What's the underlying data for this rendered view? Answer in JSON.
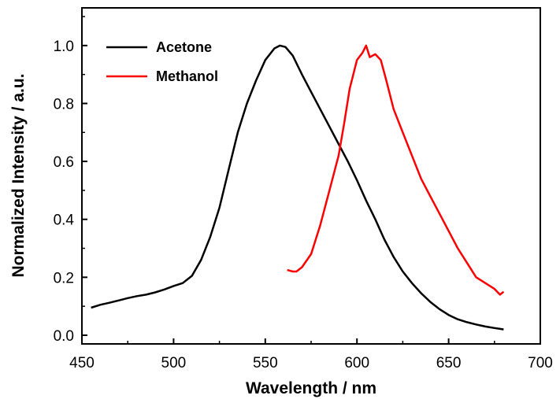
{
  "chart_data": {
    "type": "line",
    "xlabel": "Wavelength / nm",
    "ylabel": "Normalized Intensity / a.u.",
    "xlim": [
      450,
      700
    ],
    "ylim": [
      -0.03,
      1.13
    ],
    "xticks": [
      450,
      500,
      550,
      600,
      650,
      700
    ],
    "yticks": [
      0.0,
      0.2,
      0.4,
      0.6,
      0.8,
      1.0
    ],
    "xtick_labels": [
      "450",
      "500",
      "550",
      "600",
      "650",
      "700"
    ],
    "ytick_labels": [
      "0.0",
      "0.2",
      "0.4",
      "0.6",
      "0.8",
      "1.0"
    ],
    "grid": false,
    "legend_position": "top-left",
    "series": [
      {
        "name": "Acetone",
        "color": "#000000",
        "x": [
          455,
          460,
          465,
          470,
          475,
          480,
          485,
          490,
          495,
          500,
          505,
          510,
          515,
          520,
          525,
          530,
          535,
          540,
          545,
          550,
          555,
          558,
          561,
          565,
          570,
          575,
          580,
          585,
          590,
          595,
          600,
          605,
          610,
          615,
          620,
          625,
          630,
          635,
          640,
          645,
          650,
          655,
          660,
          665,
          670,
          675,
          680
        ],
        "y": [
          0.095,
          0.105,
          0.112,
          0.12,
          0.128,
          0.135,
          0.14,
          0.148,
          0.158,
          0.17,
          0.18,
          0.205,
          0.26,
          0.34,
          0.44,
          0.57,
          0.7,
          0.8,
          0.88,
          0.95,
          0.99,
          1.0,
          0.995,
          0.965,
          0.9,
          0.84,
          0.78,
          0.72,
          0.66,
          0.6,
          0.535,
          0.465,
          0.4,
          0.33,
          0.27,
          0.22,
          0.18,
          0.145,
          0.115,
          0.09,
          0.07,
          0.055,
          0.045,
          0.037,
          0.03,
          0.025,
          0.02
        ]
      },
      {
        "name": "Methanol",
        "color": "#ff0000",
        "x": [
          562,
          565,
          567,
          570,
          575,
          580,
          585,
          590,
          593,
          596,
          600,
          603,
          605,
          607,
          610,
          613,
          616,
          620,
          625,
          630,
          635,
          640,
          645,
          650,
          655,
          660,
          665,
          670,
          675,
          678,
          680
        ],
        "y": [
          0.225,
          0.22,
          0.22,
          0.235,
          0.28,
          0.38,
          0.5,
          0.62,
          0.73,
          0.85,
          0.95,
          0.975,
          1.0,
          0.96,
          0.97,
          0.95,
          0.88,
          0.78,
          0.7,
          0.62,
          0.54,
          0.48,
          0.42,
          0.36,
          0.3,
          0.25,
          0.2,
          0.18,
          0.16,
          0.14,
          0.15
        ]
      }
    ]
  }
}
